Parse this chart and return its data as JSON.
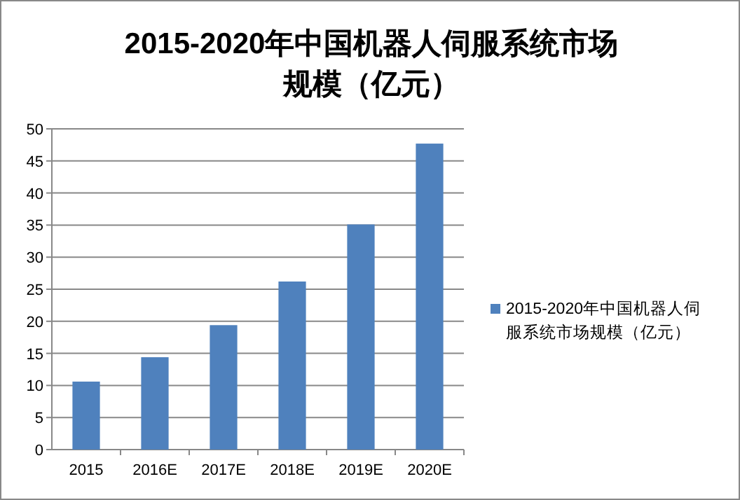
{
  "chart_data": {
    "type": "bar",
    "title": "2015-2020年中国机器人伺服系统市场规模（亿元）",
    "categories": [
      "2015",
      "2016E",
      "2017E",
      "2018E",
      "2019E",
      "2020E"
    ],
    "series": [
      {
        "name": "2015-2020年中国机器人伺服系统市场规模（亿元）",
        "color": "#4f81bd",
        "values": [
          10.6,
          14.4,
          19.4,
          26.2,
          35.1,
          47.7
        ]
      }
    ],
    "ylim": [
      0,
      50
    ],
    "yticks": [
      0,
      5,
      10,
      15,
      20,
      25,
      30,
      35,
      40,
      45,
      50
    ],
    "grid": "y",
    "legend": "right"
  }
}
